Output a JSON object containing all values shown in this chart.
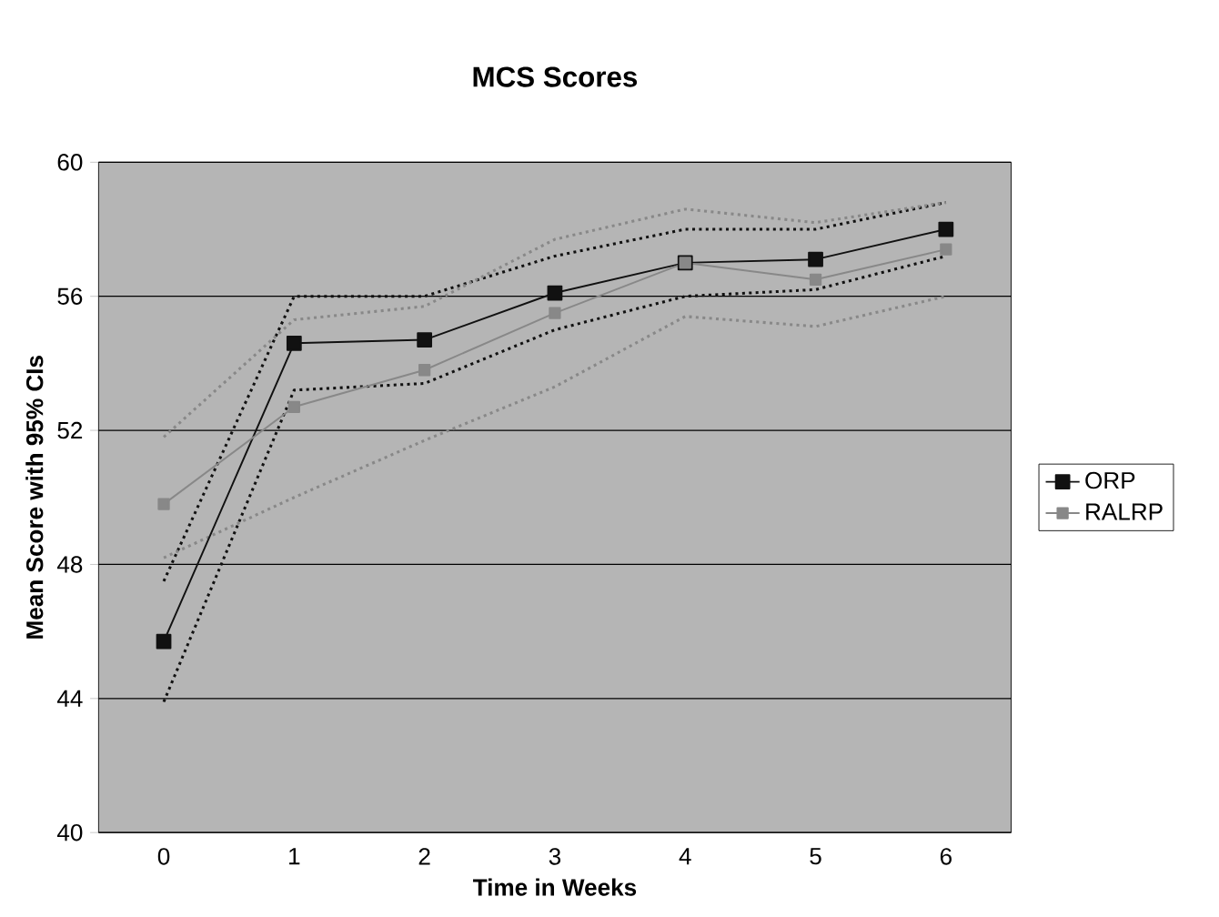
{
  "chart_data": {
    "type": "line",
    "title": "MCS Scores",
    "xlabel": "Time in Weeks",
    "ylabel": "Mean Score with 95% CIs",
    "categories": [
      "0",
      "1",
      "2",
      "3",
      "4",
      "5",
      "6"
    ],
    "series": [
      {
        "name": "ORP",
        "color": "#111111",
        "values": [
          45.7,
          54.6,
          54.7,
          56.1,
          57.0,
          57.1,
          58.0
        ]
      },
      {
        "name": "RALRP",
        "color": "#888888",
        "values": [
          49.8,
          52.7,
          53.8,
          55.5,
          57.0,
          56.5,
          57.4
        ]
      },
      {
        "color": "#111111",
        "line_style": "dotted",
        "marker": "none",
        "values": [
          43.9,
          53.2,
          53.4,
          55.0,
          56.0,
          56.2,
          57.2
        ]
      },
      {
        "color": "#111111",
        "line_style": "dotted",
        "marker": "none",
        "values": [
          47.5,
          56.0,
          56.0,
          57.2,
          58.0,
          58.0,
          58.8
        ]
      },
      {
        "color": "#888888",
        "line_style": "dotted",
        "marker": "none",
        "values": [
          48.2,
          50.0,
          51.7,
          53.3,
          55.4,
          55.1,
          56.0
        ]
      },
      {
        "color": "#888888",
        "line_style": "dotted",
        "marker": "none",
        "values": [
          51.8,
          55.3,
          55.7,
          57.7,
          58.6,
          58.2,
          58.8
        ]
      }
    ],
    "ylim": [
      40,
      60
    ],
    "yticks": [
      40,
      44,
      48,
      52,
      56,
      60
    ],
    "grid": "y",
    "legend": "right",
    "marker": "square",
    "line_style": "solid"
  }
}
